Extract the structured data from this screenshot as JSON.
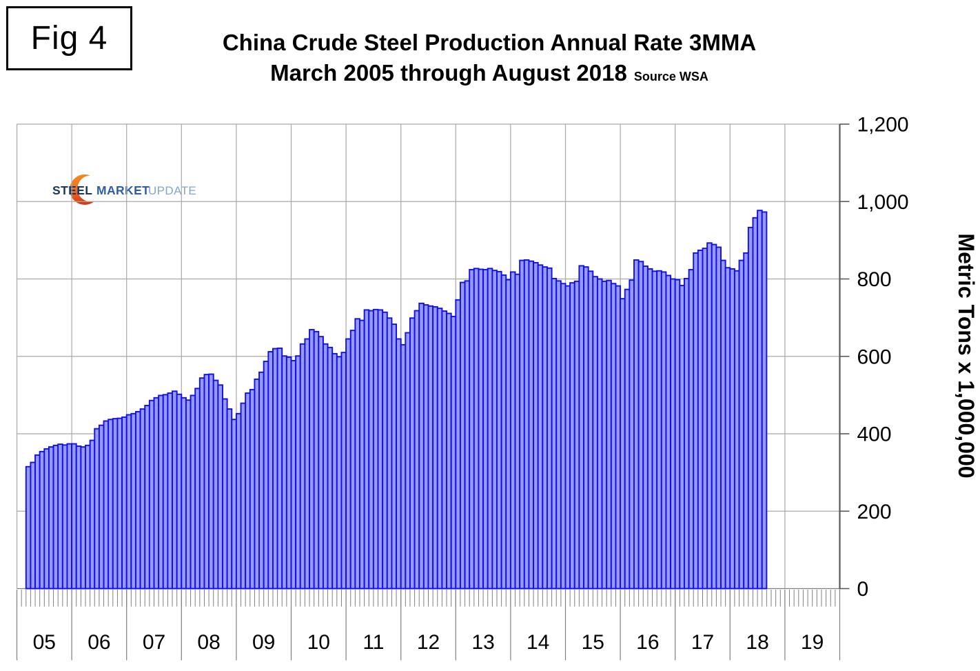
{
  "figure_label": "Fig 4",
  "title": {
    "line1": "China Crude Steel Production Annual Rate 3MMA",
    "line2": "March 2005 through August 2018",
    "source": "Source WSA"
  },
  "logo": {
    "steel": "STEEL",
    "market": "MARKET",
    "update": "UPDATE"
  },
  "colors": {
    "bar_fill": "#9799FC",
    "bar_border": "#0F0FE8",
    "grid": "#A8A8A8",
    "axis_right": "#595959",
    "axis_bottom": "#7F7F7F",
    "text": "#000000",
    "logo_steel": "#17375E",
    "logo_market": "#2D5CA8",
    "logo_update": "#85A3CF",
    "logo_crescent_top": "#F6921E",
    "logo_crescent_bottom": "#D93A16"
  },
  "chart_data": {
    "type": "bar",
    "title": "China Crude Steel Production Annual Rate 3MMA",
    "subtitle": "March 2005 through August 2018",
    "source": "Source WSA",
    "ylabel": "Metric Tons x 1,000,000",
    "ylim": [
      0,
      1200
    ],
    "ytick_step": 200,
    "ytick_labels": [
      "0",
      "200",
      "400",
      "600",
      "800",
      "1,000",
      "1,200"
    ],
    "axis_start_year": 2005,
    "categories_years": [
      "05",
      "06",
      "07",
      "08",
      "09",
      "10",
      "11",
      "12",
      "13",
      "14",
      "15",
      "16",
      "17",
      "18",
      "19"
    ],
    "frequency": "monthly",
    "start_month": "2005-03",
    "end_month": "2018-08",
    "grid": true,
    "legend": null,
    "values": [
      315,
      326,
      345,
      354,
      361,
      366,
      370,
      373,
      371,
      374,
      374,
      368,
      366,
      370,
      383,
      413,
      422,
      433,
      437,
      439,
      440,
      443,
      449,
      452,
      457,
      464,
      473,
      486,
      493,
      499,
      501,
      505,
      510,
      502,
      493,
      487,
      499,
      517,
      544,
      553,
      554,
      538,
      526,
      490,
      464,
      437,
      452,
      479,
      505,
      514,
      541,
      559,
      587,
      612,
      620,
      621,
      601,
      598,
      589,
      601,
      632,
      645,
      669,
      664,
      651,
      632,
      623,
      607,
      599,
      610,
      645,
      667,
      697,
      693,
      720,
      718,
      721,
      720,
      714,
      699,
      683,
      645,
      630,
      661,
      699,
      718,
      737,
      733,
      730,
      728,
      724,
      717,
      711,
      703,
      746,
      791,
      795,
      824,
      827,
      825,
      824,
      827,
      822,
      819,
      810,
      798,
      818,
      812,
      848,
      849,
      846,
      842,
      836,
      831,
      828,
      801,
      795,
      788,
      782,
      790,
      794,
      834,
      831,
      820,
      806,
      800,
      794,
      796,
      788,
      782,
      749,
      773,
      797,
      849,
      845,
      833,
      826,
      820,
      821,
      818,
      809,
      800,
      798,
      783,
      801,
      824,
      867,
      874,
      879,
      893,
      889,
      882,
      848,
      829,
      826,
      821,
      848,
      867,
      933,
      958,
      977,
      973
    ]
  }
}
